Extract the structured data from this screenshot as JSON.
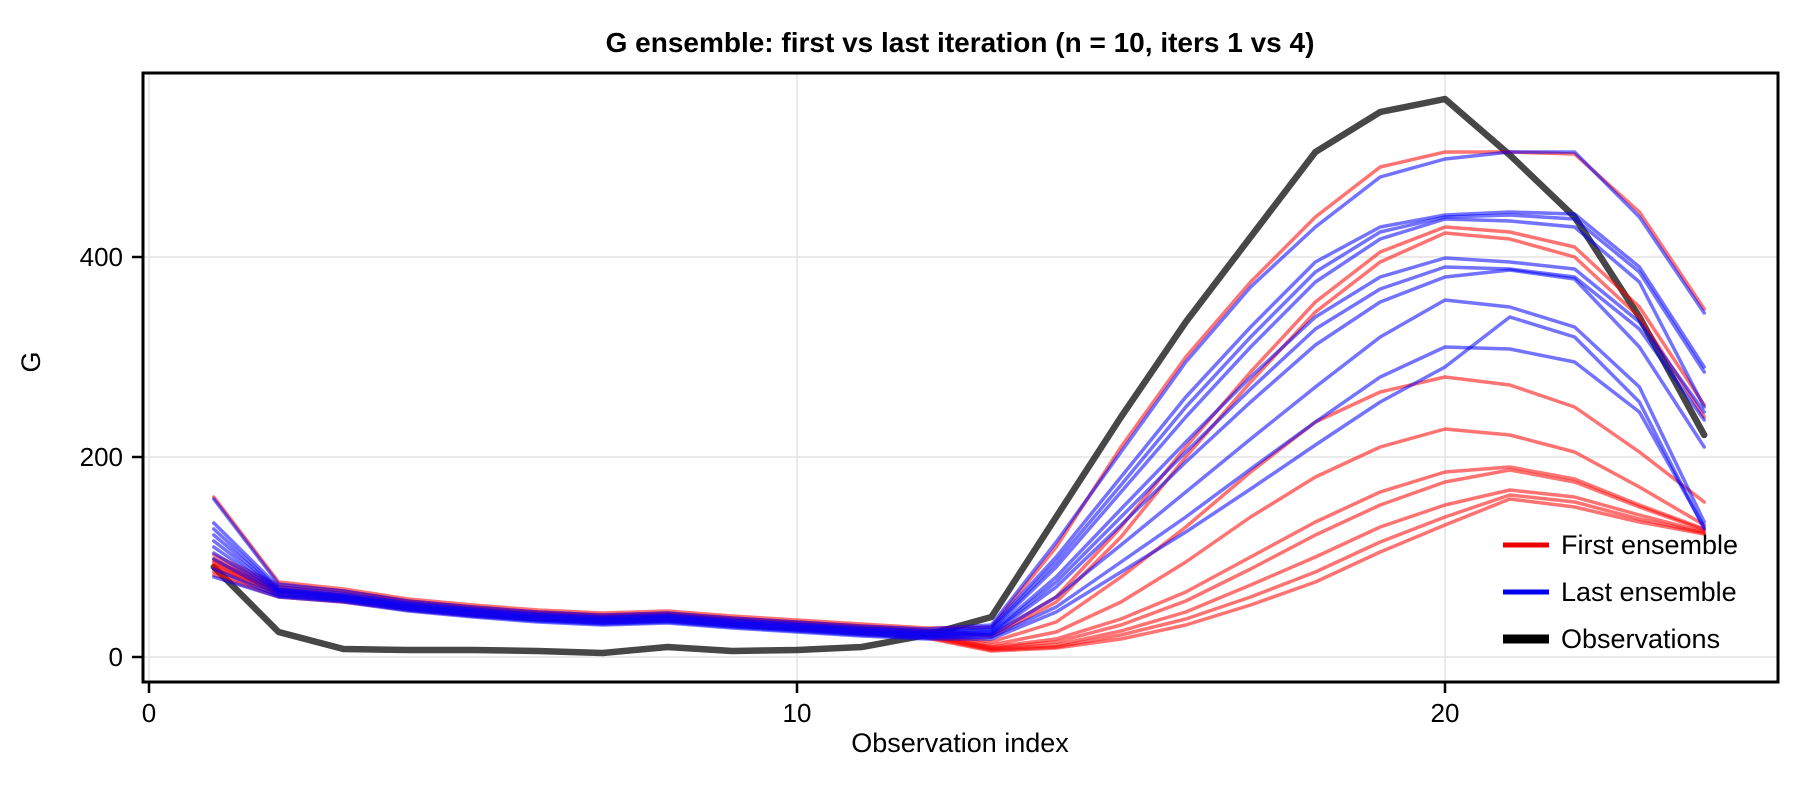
{
  "chart_data": {
    "type": "line",
    "title": "G ensemble: first vs last iteration (n = 10, iters 1 vs 4)",
    "xlabel": "Observation index",
    "ylabel": "G",
    "xlim": [
      -0.1,
      25.1
    ],
    "ylim": [
      -25,
      584
    ],
    "grid": true,
    "xticks": [
      0,
      10,
      20
    ],
    "yticks": [
      0,
      200,
      400
    ],
    "x": [
      1,
      2,
      3,
      4,
      5,
      6,
      7,
      8,
      9,
      10,
      11,
      12,
      13,
      14,
      15,
      16,
      17,
      18,
      19,
      20,
      21,
      22,
      23,
      24
    ],
    "legend": {
      "position": "bottom-right",
      "items": [
        {
          "label": "First ensemble",
          "color": "#ee0000",
          "width": 5
        },
        {
          "label": "Last ensemble",
          "color": "#0000ee",
          "width": 5
        },
        {
          "label": "Observations",
          "color": "#000000",
          "width": 9
        }
      ]
    },
    "series": [
      {
        "name": "observations",
        "legend": "Observations",
        "color": "#000000",
        "opacity": 0.72,
        "width": 6.5,
        "values": [
          90,
          25,
          8,
          7,
          7,
          6,
          4,
          10,
          6,
          7,
          10,
          22,
          40,
          140,
          240,
          335,
          420,
          505,
          545,
          558,
          502,
          440,
          340,
          222
        ]
      },
      {
        "name": "first-member-1",
        "group": "first",
        "color": "#ff0000",
        "opacity": 0.55,
        "width": 3.5,
        "values": [
          160,
          75,
          68,
          58,
          52,
          47,
          44,
          46,
          41,
          37,
          33,
          29,
          30,
          110,
          210,
          300,
          375,
          440,
          490,
          505,
          505,
          503,
          445,
          348
        ]
      },
      {
        "name": "first-member-2",
        "group": "first",
        "color": "#ff0000",
        "opacity": 0.55,
        "width": 3.5,
        "values": [
          102,
          72,
          66,
          56,
          50,
          45,
          42,
          44,
          39,
          35,
          31,
          27,
          22,
          60,
          130,
          210,
          285,
          355,
          405,
          430,
          425,
          410,
          350,
          252
        ]
      },
      {
        "name": "first-member-3",
        "group": "first",
        "color": "#ff0000",
        "opacity": 0.55,
        "width": 3.5,
        "values": [
          98,
          70,
          64,
          55,
          49,
          44,
          41,
          43,
          38,
          34,
          30,
          26,
          20,
          55,
          120,
          200,
          275,
          345,
          395,
          424,
          418,
          400,
          340,
          240
        ]
      },
      {
        "name": "first-member-4",
        "group": "first",
        "color": "#ff0000",
        "opacity": 0.55,
        "width": 3.5,
        "values": [
          96,
          68,
          62,
          53,
          47,
          43,
          40,
          42,
          37,
          33,
          29,
          25,
          15,
          35,
          80,
          130,
          185,
          235,
          265,
          280,
          272,
          250,
          205,
          155
        ]
      },
      {
        "name": "first-member-5",
        "group": "first",
        "color": "#ff0000",
        "opacity": 0.55,
        "width": 3.5,
        "values": [
          94,
          67,
          61,
          52,
          46,
          42,
          39,
          41,
          36,
          32,
          28,
          24,
          12,
          25,
          55,
          95,
          140,
          180,
          210,
          228,
          222,
          205,
          170,
          132
        ]
      },
      {
        "name": "first-member-6",
        "group": "first",
        "color": "#ff0000",
        "opacity": 0.55,
        "width": 3.5,
        "values": [
          92,
          66,
          60,
          51,
          45,
          41,
          38,
          40,
          35,
          31,
          27,
          23,
          10,
          18,
          38,
          65,
          100,
          135,
          165,
          185,
          190,
          178,
          152,
          128
        ]
      },
      {
        "name": "first-member-7",
        "group": "first",
        "color": "#ff0000",
        "opacity": 0.55,
        "width": 3.5,
        "values": [
          90,
          65,
          59,
          50,
          44,
          40,
          37,
          39,
          34,
          30,
          26,
          22,
          9,
          15,
          32,
          56,
          88,
          122,
          152,
          175,
          187,
          175,
          150,
          127
        ]
      },
      {
        "name": "first-member-8",
        "group": "first",
        "color": "#ff0000",
        "opacity": 0.55,
        "width": 3.5,
        "values": [
          88,
          64,
          58,
          49,
          43,
          39,
          36,
          38,
          33,
          29,
          25,
          21,
          8,
          12,
          26,
          45,
          72,
          100,
          130,
          152,
          167,
          160,
          142,
          125
        ]
      },
      {
        "name": "first-member-9",
        "group": "first",
        "color": "#ff0000",
        "opacity": 0.55,
        "width": 3.5,
        "values": [
          85,
          62,
          56,
          48,
          42,
          38,
          35,
          37,
          32,
          28,
          24,
          20,
          7,
          10,
          22,
          38,
          60,
          85,
          115,
          140,
          162,
          155,
          138,
          124
        ]
      },
      {
        "name": "first-member-10",
        "group": "first",
        "color": "#ff0000",
        "opacity": 0.55,
        "width": 3.5,
        "values": [
          82,
          60,
          55,
          47,
          41,
          37,
          34,
          36,
          31,
          27,
          23,
          19,
          6,
          9,
          18,
          32,
          52,
          75,
          105,
          132,
          158,
          150,
          135,
          123
        ]
      },
      {
        "name": "last-member-1",
        "group": "last",
        "color": "#0000ff",
        "opacity": 0.55,
        "width": 3.5,
        "values": [
          158,
          73,
          66,
          56,
          50,
          45,
          42,
          44,
          39,
          35,
          31,
          28,
          32,
          115,
          205,
          295,
          370,
          430,
          480,
          498,
          505,
          505,
          440,
          344
        ]
      },
      {
        "name": "last-member-2",
        "group": "last",
        "color": "#0000ff",
        "opacity": 0.55,
        "width": 3.5,
        "values": [
          134,
          70,
          63,
          54,
          48,
          43,
          40,
          42,
          37,
          33,
          29,
          26,
          30,
          100,
          180,
          260,
          330,
          395,
          430,
          442,
          445,
          443,
          390,
          290
        ]
      },
      {
        "name": "last-member-3",
        "group": "last",
        "color": "#0000ff",
        "opacity": 0.55,
        "width": 3.5,
        "values": [
          128,
          68,
          62,
          53,
          47,
          42,
          39,
          41,
          36,
          32,
          28,
          25,
          28,
          95,
          172,
          250,
          320,
          385,
          425,
          440,
          442,
          438,
          385,
          285
        ]
      },
      {
        "name": "last-member-4",
        "group": "last",
        "color": "#0000ff",
        "opacity": 0.55,
        "width": 3.5,
        "values": [
          122,
          67,
          61,
          52,
          46,
          41,
          38,
          40,
          35,
          31,
          27,
          24,
          27,
          90,
          165,
          240,
          310,
          375,
          418,
          438,
          436,
          430,
          375,
          250
        ]
      },
      {
        "name": "last-member-5",
        "group": "last",
        "color": "#0000ff",
        "opacity": 0.55,
        "width": 3.5,
        "values": [
          116,
          66,
          60,
          51,
          45,
          40,
          37,
          39,
          34,
          30,
          26,
          23,
          25,
          80,
          148,
          215,
          280,
          340,
          380,
          399,
          395,
          388,
          335,
          245
        ]
      },
      {
        "name": "last-member-6",
        "group": "last",
        "color": "#0000ff",
        "opacity": 0.55,
        "width": 3.5,
        "values": [
          110,
          65,
          59,
          50,
          44,
          39,
          36,
          38,
          33,
          29,
          25,
          22,
          24,
          75,
          140,
          205,
          268,
          328,
          368,
          390,
          388,
          380,
          328,
          237
        ]
      },
      {
        "name": "last-member-7",
        "group": "last",
        "color": "#0000ff",
        "opacity": 0.55,
        "width": 3.5,
        "values": [
          104,
          64,
          58,
          49,
          43,
          38,
          35,
          37,
          32,
          28,
          24,
          21,
          23,
          70,
          132,
          195,
          255,
          312,
          355,
          380,
          387,
          378,
          310,
          210
        ]
      },
      {
        "name": "last-member-8",
        "group": "last",
        "color": "#0000ff",
        "opacity": 0.55,
        "width": 3.5,
        "values": [
          98,
          62,
          57,
          48,
          42,
          37,
          34,
          36,
          31,
          27,
          23,
          20,
          22,
          60,
          112,
          165,
          218,
          270,
          320,
          357,
          350,
          330,
          270,
          135
        ]
      },
      {
        "name": "last-member-9",
        "group": "last",
        "color": "#0000ff",
        "opacity": 0.55,
        "width": 3.5,
        "values": [
          88,
          61,
          56,
          47,
          41,
          36,
          33,
          35,
          30,
          26,
          22,
          19,
          20,
          50,
          95,
          140,
          188,
          235,
          280,
          310,
          308,
          295,
          245,
          130
        ]
      },
      {
        "name": "last-member-10",
        "group": "last",
        "color": "#0000ff",
        "opacity": 0.55,
        "width": 3.5,
        "values": [
          80,
          60,
          55,
          46,
          40,
          35,
          32,
          34,
          29,
          25,
          21,
          18,
          18,
          45,
          85,
          125,
          168,
          212,
          255,
          290,
          340,
          320,
          255,
          128
        ]
      }
    ],
    "style": {
      "grid_color": "#e4e4e4",
      "panel_border_color": "#000000",
      "tick_color": "#000000",
      "background": "#ffffff"
    }
  }
}
